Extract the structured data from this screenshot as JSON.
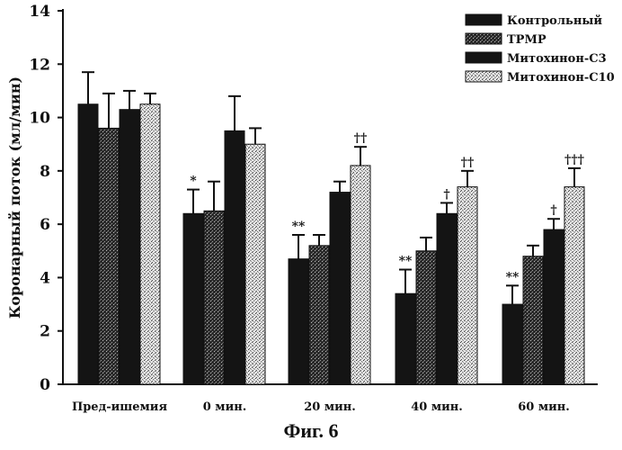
{
  "caption": "Фиг. 6",
  "chart_data": {
    "type": "bar",
    "ylabel": "Коронарный поток (мл/мин)",
    "xlabel": "",
    "ylim": [
      0,
      14
    ],
    "yticks": [
      0,
      2,
      4,
      6,
      8,
      10,
      12,
      14
    ],
    "categories": [
      "Пред-ишемия",
      "0 мин.",
      "20 мин.",
      "40 мин.",
      "60 мин."
    ],
    "legend_position": "top-right",
    "series": [
      {
        "name": "Контрольный",
        "values": [
          10.5,
          6.4,
          4.7,
          3.4,
          3.0
        ],
        "errors": [
          1.2,
          0.9,
          0.9,
          0.9,
          0.7
        ],
        "pattern": "solid"
      },
      {
        "name": "TPMP",
        "values": [
          9.6,
          6.5,
          5.2,
          5.0,
          4.8
        ],
        "errors": [
          1.3,
          1.1,
          0.4,
          0.5,
          0.4
        ],
        "pattern": "dark-speckle"
      },
      {
        "name": "Митохинон-С3",
        "values": [
          10.3,
          9.5,
          7.2,
          6.4,
          5.8
        ],
        "errors": [
          0.7,
          1.3,
          0.4,
          0.4,
          0.4
        ],
        "pattern": "solid"
      },
      {
        "name": "Митохинон-С10",
        "values": [
          10.5,
          9.0,
          8.2,
          7.4,
          7.4
        ],
        "errors": [
          0.4,
          0.6,
          0.7,
          0.6,
          0.7
        ],
        "pattern": "light-speckle"
      }
    ],
    "annotations": [
      {
        "category": 1,
        "series": 0,
        "text": "*"
      },
      {
        "category": 2,
        "series": 0,
        "text": "**"
      },
      {
        "category": 3,
        "series": 0,
        "text": "**"
      },
      {
        "category": 4,
        "series": 0,
        "text": "**"
      },
      {
        "category": 2,
        "series": 3,
        "text": "††"
      },
      {
        "category": 3,
        "series": 2,
        "text": "†"
      },
      {
        "category": 3,
        "series": 3,
        "text": "††"
      },
      {
        "category": 4,
        "series": 2,
        "text": "†"
      },
      {
        "category": 4,
        "series": 3,
        "text": "†††"
      }
    ],
    "grid": false
  }
}
